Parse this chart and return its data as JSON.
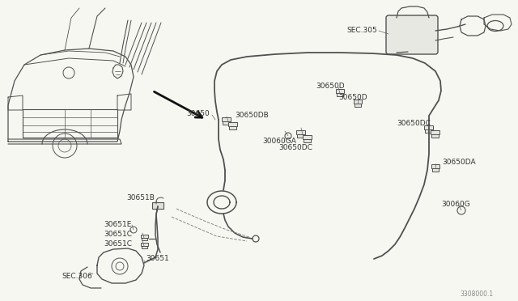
{
  "bg_color": "#f7f7f2",
  "line_color": "#505050",
  "text_color": "#303030",
  "part_number": "3308000.1",
  "labels": {
    "SEC305": "SEC.305",
    "30650D_a": "30650D",
    "30650D_b": "30650D",
    "30650DB": "30650DB",
    "30060GA": "30060GA",
    "30650DC_a": "30650DC",
    "30650DC_b": "30650DC",
    "30650": "30650",
    "30650DA": "30650DA",
    "30060G": "30060G",
    "30651B": "30651B",
    "30651E": "30651E",
    "30651C_a": "30651C",
    "30651C_b": "30651C",
    "30651": "30651",
    "SEC306": "SEC.306"
  },
  "font_size": 6.5
}
